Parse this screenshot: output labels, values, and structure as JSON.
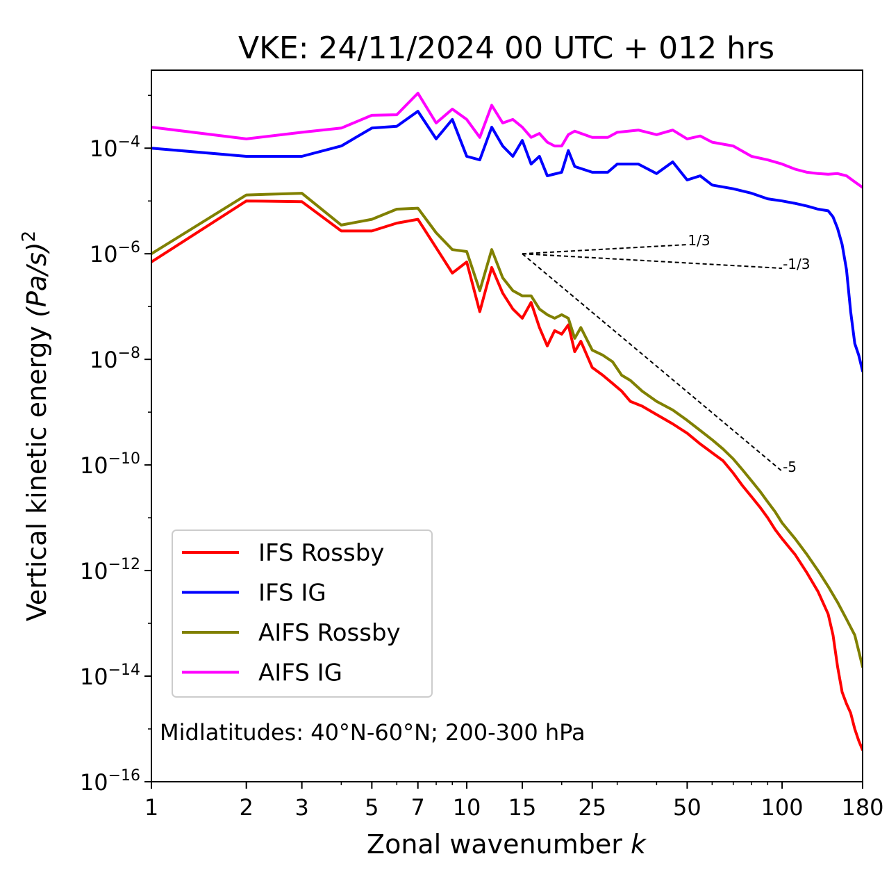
{
  "chart_data": {
    "type": "line",
    "title": "VKE: 24/11/2024 00 UTC + 012 hrs",
    "xlabel": "Zonal wavenumber",
    "xlabel_symbol": "k",
    "ylabel": "Vertical kinetic energy",
    "ylabel_unit": "(Pa/s)",
    "ylabel_unit_exp": "2",
    "xscale": "log",
    "yscale": "log",
    "xlim": [
      1,
      180
    ],
    "ylim": [
      1e-16,
      0.003
    ],
    "grid": false,
    "legend_position": "lower-left",
    "annotation": "Midlatitudes: 40°N-60°N; 200-300 hPa",
    "x_ticks": [
      {
        "value": 1,
        "label": "1"
      },
      {
        "value": 2,
        "label": "2"
      },
      {
        "value": 3,
        "label": "3"
      },
      {
        "value": 5,
        "label": "5"
      },
      {
        "value": 7,
        "label": "7"
      },
      {
        "value": 10,
        "label": "10"
      },
      {
        "value": 15,
        "label": "15"
      },
      {
        "value": 25,
        "label": "25"
      },
      {
        "value": 50,
        "label": "50"
      },
      {
        "value": 100,
        "label": "100"
      },
      {
        "value": 180,
        "label": "180"
      }
    ],
    "y_ticks": [
      {
        "exp": -4,
        "base": "10",
        "label": "−4"
      },
      {
        "exp": -6,
        "base": "10",
        "label": "−6"
      },
      {
        "exp": -8,
        "base": "10",
        "label": "−8"
      },
      {
        "exp": -10,
        "base": "10",
        "label": "−10"
      },
      {
        "exp": -12,
        "base": "10",
        "label": "−12"
      },
      {
        "exp": -14,
        "base": "10",
        "label": "−14"
      },
      {
        "exp": -16,
        "base": "10",
        "label": "−16"
      }
    ],
    "reference_slopes": [
      {
        "label": "1/3",
        "x": [
          15,
          50
        ],
        "y": [
          1e-06,
          1.49e-06
        ]
      },
      {
        "label": "-1/3",
        "x": [
          15,
          100
        ],
        "y": [
          1e-06,
          5.31e-07
        ]
      },
      {
        "label": "-5",
        "x": [
          15,
          100
        ],
        "y": [
          1e-06,
          7.59e-11
        ]
      }
    ],
    "series": [
      {
        "name": "IFS Rossby",
        "color": "#ff0000",
        "points": [
          [
            1,
            7e-07
          ],
          [
            2,
            1e-05
          ],
          [
            3,
            9.7e-06
          ],
          [
            4,
            2.7e-06
          ],
          [
            5,
            2.7e-06
          ],
          [
            6,
            3.8e-06
          ],
          [
            7,
            4.5e-06
          ],
          [
            8,
            1.3e-06
          ],
          [
            9,
            4.3e-07
          ],
          [
            10,
            7e-07
          ],
          [
            11,
            8e-08
          ],
          [
            12,
            5.5e-07
          ],
          [
            13,
            1.8e-07
          ],
          [
            14,
            9e-08
          ],
          [
            15,
            6e-08
          ],
          [
            16,
            1.2e-07
          ],
          [
            17,
            4e-08
          ],
          [
            18,
            1.8e-08
          ],
          [
            19,
            3.5e-08
          ],
          [
            20,
            3e-08
          ],
          [
            21,
            4.5e-08
          ],
          [
            22,
            1.4e-08
          ],
          [
            23,
            2.2e-08
          ],
          [
            25,
            7e-09
          ],
          [
            27,
            5e-09
          ],
          [
            29,
            3.5e-09
          ],
          [
            31,
            2.5e-09
          ],
          [
            33,
            1.6e-09
          ],
          [
            36,
            1.3e-09
          ],
          [
            40,
            9e-10
          ],
          [
            45,
            6e-10
          ],
          [
            50,
            4e-10
          ],
          [
            55,
            2.5e-10
          ],
          [
            60,
            1.7e-10
          ],
          [
            65,
            1.2e-10
          ],
          [
            70,
            7e-11
          ],
          [
            75,
            4e-11
          ],
          [
            80,
            2.5e-11
          ],
          [
            85,
            1.6e-11
          ],
          [
            90,
            1e-11
          ],
          [
            95,
            6e-12
          ],
          [
            100,
            4e-12
          ],
          [
            110,
            2e-12
          ],
          [
            120,
            9e-13
          ],
          [
            130,
            4e-13
          ],
          [
            140,
            1.5e-13
          ],
          [
            145,
            6e-14
          ],
          [
            150,
            1.5e-14
          ],
          [
            155,
            5e-15
          ],
          [
            160,
            3e-15
          ],
          [
            165,
            2e-15
          ],
          [
            170,
            1e-15
          ],
          [
            175,
            6e-16
          ],
          [
            180,
            4e-16
          ]
        ]
      },
      {
        "name": "IFS IG",
        "color": "#0000ff",
        "points": [
          [
            1,
            0.0001
          ],
          [
            2,
            7e-05
          ],
          [
            3,
            7e-05
          ],
          [
            4,
            0.00011
          ],
          [
            5,
            0.00024
          ],
          [
            6,
            0.00026
          ],
          [
            7,
            0.0005
          ],
          [
            8,
            0.00015
          ],
          [
            9,
            0.00035
          ],
          [
            10,
            7e-05
          ],
          [
            11,
            6e-05
          ],
          [
            12,
            0.00025
          ],
          [
            13,
            0.00011
          ],
          [
            14,
            7e-05
          ],
          [
            15,
            0.00014
          ],
          [
            16,
            5e-05
          ],
          [
            17,
            7e-05
          ],
          [
            18,
            3e-05
          ],
          [
            20,
            3.5e-05
          ],
          [
            21,
            9e-05
          ],
          [
            22,
            4.5e-05
          ],
          [
            25,
            3.5e-05
          ],
          [
            28,
            3.5e-05
          ],
          [
            30,
            5e-05
          ],
          [
            35,
            5e-05
          ],
          [
            40,
            3.3e-05
          ],
          [
            45,
            5.5e-05
          ],
          [
            50,
            2.5e-05
          ],
          [
            55,
            3e-05
          ],
          [
            60,
            2e-05
          ],
          [
            70,
            1.7e-05
          ],
          [
            80,
            1.4e-05
          ],
          [
            90,
            1.1e-05
          ],
          [
            100,
            1e-05
          ],
          [
            110,
            9e-06
          ],
          [
            120,
            8e-06
          ],
          [
            130,
            7e-06
          ],
          [
            140,
            6.5e-06
          ],
          [
            145,
            5e-06
          ],
          [
            150,
            3e-06
          ],
          [
            155,
            1.5e-06
          ],
          [
            160,
            5e-07
          ],
          [
            165,
            8e-08
          ],
          [
            170,
            2e-08
          ],
          [
            175,
            1.2e-08
          ],
          [
            180,
            6e-09
          ]
        ]
      },
      {
        "name": "AIFS Rossby",
        "color": "#808000",
        "points": [
          [
            1,
            1e-06
          ],
          [
            2,
            1.3e-05
          ],
          [
            3,
            1.4e-05
          ],
          [
            4,
            3.5e-06
          ],
          [
            5,
            4.5e-06
          ],
          [
            6,
            7e-06
          ],
          [
            7,
            7.3e-06
          ],
          [
            8,
            2.5e-06
          ],
          [
            9,
            1.2e-06
          ],
          [
            10,
            1.1e-06
          ],
          [
            11,
            2e-07
          ],
          [
            12,
            1.2e-06
          ],
          [
            13,
            3.5e-07
          ],
          [
            14,
            2e-07
          ],
          [
            15,
            1.6e-07
          ],
          [
            16,
            1.6e-07
          ],
          [
            17,
            9e-08
          ],
          [
            18,
            7e-08
          ],
          [
            19,
            6e-08
          ],
          [
            20,
            7e-08
          ],
          [
            21,
            6e-08
          ],
          [
            22,
            2.5e-08
          ],
          [
            23,
            4e-08
          ],
          [
            25,
            1.5e-08
          ],
          [
            27,
            1.2e-08
          ],
          [
            29,
            9e-09
          ],
          [
            31,
            5e-09
          ],
          [
            33,
            4e-09
          ],
          [
            36,
            2.5e-09
          ],
          [
            40,
            1.6e-09
          ],
          [
            45,
            1.1e-09
          ],
          [
            50,
            7e-10
          ],
          [
            55,
            4.5e-10
          ],
          [
            60,
            3e-10
          ],
          [
            65,
            2e-10
          ],
          [
            70,
            1.3e-10
          ],
          [
            75,
            8e-11
          ],
          [
            80,
            5e-11
          ],
          [
            85,
            3.2e-11
          ],
          [
            90,
            2e-11
          ],
          [
            95,
            1.3e-11
          ],
          [
            100,
            8e-12
          ],
          [
            110,
            4e-12
          ],
          [
            120,
            2e-12
          ],
          [
            130,
            1e-12
          ],
          [
            140,
            5e-13
          ],
          [
            150,
            2.5e-13
          ],
          [
            160,
            1.2e-13
          ],
          [
            170,
            6e-14
          ],
          [
            175,
            3e-14
          ],
          [
            180,
            1.5e-14
          ]
        ]
      },
      {
        "name": "AIFS IG",
        "color": "#ff00ff",
        "points": [
          [
            1,
            0.00025
          ],
          [
            2,
            0.00015
          ],
          [
            3,
            0.0002
          ],
          [
            4,
            0.00024
          ],
          [
            5,
            0.00042
          ],
          [
            6,
            0.00043
          ],
          [
            7,
            0.0011
          ],
          [
            8,
            0.0003
          ],
          [
            9,
            0.00055
          ],
          [
            10,
            0.00035
          ],
          [
            11,
            0.00016
          ],
          [
            12,
            0.00065
          ],
          [
            13,
            0.0003
          ],
          [
            14,
            0.00035
          ],
          [
            15,
            0.00025
          ],
          [
            16,
            0.00016
          ],
          [
            17,
            0.00019
          ],
          [
            18,
            0.00013
          ],
          [
            19,
            0.00011
          ],
          [
            20,
            0.00011
          ],
          [
            21,
            0.00018
          ],
          [
            22,
            0.00021
          ],
          [
            25,
            0.00016
          ],
          [
            28,
            0.00016
          ],
          [
            30,
            0.0002
          ],
          [
            35,
            0.00022
          ],
          [
            40,
            0.00018
          ],
          [
            45,
            0.00022
          ],
          [
            50,
            0.00015
          ],
          [
            55,
            0.00017
          ],
          [
            60,
            0.00013
          ],
          [
            70,
            0.00011
          ],
          [
            80,
            7e-05
          ],
          [
            90,
            6e-05
          ],
          [
            100,
            5e-05
          ],
          [
            110,
            4e-05
          ],
          [
            120,
            3.5e-05
          ],
          [
            130,
            3.3e-05
          ],
          [
            140,
            3.2e-05
          ],
          [
            150,
            3.3e-05
          ],
          [
            160,
            3e-05
          ],
          [
            170,
            2.3e-05
          ],
          [
            180,
            1.8e-05
          ]
        ]
      }
    ]
  }
}
